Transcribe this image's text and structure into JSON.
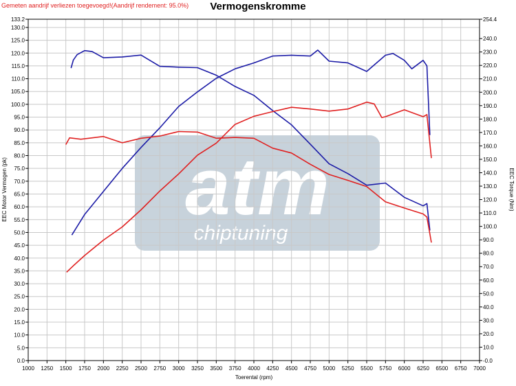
{
  "header": {
    "note": "Gemeten aandrijf verliezen toegevoegd!(Aandrijf rendement: 95.0%)",
    "title": "Vermogenskromme"
  },
  "watermark": {
    "brand": "atm",
    "sub": "chiptuning"
  },
  "colors": {
    "tuned": "#1a1aa6",
    "stock": "#e02020",
    "grid": "#c8c8c8",
    "watermark": "#9aaebf"
  },
  "chart_data": {
    "type": "line",
    "title": "Vermogenskromme",
    "xlabel": "Toerental (rpm)",
    "ylabel_left": "EEC Motor Vermogen (pk)",
    "ylabel_right": "EEC Torque (Nm)",
    "xlim": [
      1000,
      7000
    ],
    "ylim_left": [
      0,
      133.2
    ],
    "ylim_right": [
      0,
      254.4
    ],
    "x_ticks": [
      "1000",
      "1250",
      "1500",
      "1750",
      "2000",
      "2250",
      "2500",
      "2750",
      "3000",
      "3250",
      "3500",
      "3750",
      "4000",
      "4250",
      "4500",
      "4750",
      "5000",
      "5250",
      "5500",
      "5750",
      "6000",
      "6250",
      "6500",
      "6750",
      "7000"
    ],
    "y_ticks_left": [
      "0.0",
      "5.0",
      "10.0",
      "15.0",
      "20.0",
      "25.0",
      "30.0",
      "35.0",
      "40.0",
      "45.0",
      "50.0",
      "55.0",
      "60.0",
      "65.0",
      "70.0",
      "75.0",
      "80.0",
      "85.0",
      "90.0",
      "95.0",
      "100.0",
      "105.0",
      "110.0",
      "115.0",
      "120.0",
      "125.0",
      "130.0",
      "133.2"
    ],
    "y_ticks_right": [
      "-0.0",
      "10.0",
      "20.0",
      "30.0",
      "40.0",
      "50.0",
      "60.0",
      "70.0",
      "80.0",
      "90.0",
      "100.0",
      "110.0",
      "120.0",
      "130.0",
      "140.0",
      "150.0",
      "160.0",
      "170.0",
      "180.0",
      "190.0",
      "200.0",
      "210.0",
      "220.0",
      "230.0",
      "240.0",
      "254.4"
    ],
    "grid": true,
    "series": [
      {
        "color": "#1a1aa6",
        "axis": "left",
        "x": [
          1580,
          1750,
          2000,
          2250,
          2500,
          2750,
          3000,
          3250,
          3500,
          3750,
          4000,
          4250,
          4500,
          4750,
          4850,
          5000,
          5250,
          5500,
          5750,
          5850,
          6000,
          6100,
          6250,
          6300,
          6340
        ],
        "values": [
          49,
          57,
          66,
          75,
          83,
          91,
          99,
          105,
          110,
          114,
          116,
          119,
          119,
          119,
          121,
          117,
          116,
          113,
          119,
          120,
          117,
          114,
          117,
          115,
          88
        ]
      },
      {
        "color": "#1a1aa6",
        "axis": "right",
        "x": [
          1570,
          1600,
          1650,
          1750,
          1850,
          2000,
          2250,
          2500,
          2750,
          3000,
          3250,
          3500,
          3750,
          4000,
          4250,
          4500,
          4750,
          5000,
          5250,
          5500,
          5750,
          6000,
          6250,
          6300,
          6340
        ],
        "values": [
          218,
          224,
          228,
          231,
          230,
          226,
          226,
          228,
          219,
          219,
          218,
          213,
          204,
          198,
          186,
          176,
          161,
          147,
          139,
          131,
          132,
          122,
          115,
          117,
          97
        ]
      },
      {
        "color": "#e02020",
        "axis": "left",
        "x": [
          1510,
          1600,
          1750,
          2000,
          2250,
          2500,
          2750,
          3000,
          3250,
          3500,
          3750,
          4000,
          4250,
          4500,
          4750,
          5000,
          5250,
          5500,
          5600,
          5700,
          5750,
          6000,
          6250,
          6300,
          6360
        ],
        "values": [
          34.5,
          37,
          41,
          47,
          52,
          59,
          66,
          73,
          80,
          85,
          92,
          95.5,
          97,
          99,
          98,
          97.5,
          98,
          101,
          100,
          95,
          95,
          98,
          95,
          96,
          79
        ]
      },
      {
        "color": "#e02020",
        "axis": "right",
        "x": [
          1500,
          1550,
          1700,
          2000,
          2250,
          2500,
          2750,
          3000,
          3250,
          3500,
          3750,
          4000,
          4250,
          4500,
          4750,
          5000,
          5250,
          5500,
          5750,
          6000,
          6250,
          6300,
          6360
        ],
        "values": [
          161,
          166,
          165,
          167,
          162,
          166,
          167,
          171,
          170,
          166,
          166,
          166,
          158,
          155,
          146,
          139,
          134,
          130,
          118,
          114,
          109,
          107,
          88
        ]
      }
    ]
  }
}
